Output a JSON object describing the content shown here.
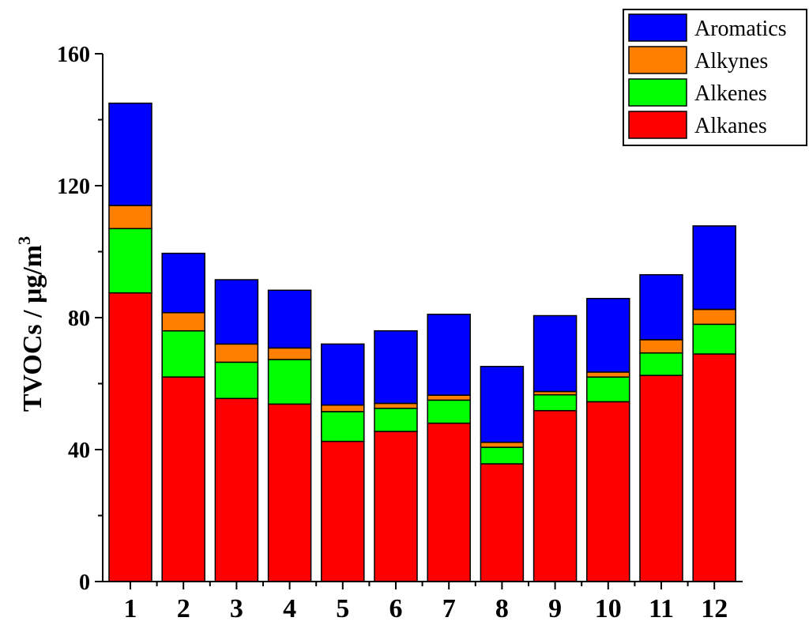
{
  "chart_data": {
    "type": "bar",
    "stacked": true,
    "categories": [
      "1",
      "2",
      "3",
      "4",
      "5",
      "6",
      "7",
      "8",
      "9",
      "10",
      "11",
      "12"
    ],
    "series": [
      {
        "name": "Alkanes",
        "color": "#ff0000",
        "values": [
          87.5,
          62,
          55.5,
          53.8,
          42.5,
          45.5,
          48,
          35.7,
          51.8,
          54.5,
          62.5,
          69
        ]
      },
      {
        "name": "Alkenes",
        "color": "#00ff00",
        "values": [
          19.5,
          14,
          11,
          13.5,
          9,
          7,
          7,
          5,
          4.8,
          7.5,
          6.8,
          9
        ]
      },
      {
        "name": "Alkynes",
        "color": "#ff8000",
        "values": [
          7,
          5.5,
          5.5,
          3.5,
          2,
          1.5,
          1.5,
          1.5,
          1,
          1.5,
          4,
          4.5
        ]
      },
      {
        "name": "Aromatics",
        "color": "#0000ff",
        "values": [
          31,
          18,
          19.5,
          17.5,
          18.5,
          22,
          24.5,
          23,
          23,
          22.3,
          19.7,
          25.3
        ]
      }
    ],
    "ylabel": "TVOCs / μg/m",
    "ylabel_superscript": "3",
    "yticks": [
      0,
      40,
      80,
      120,
      160
    ],
    "ylim": [
      0,
      160
    ],
    "legend_position": "top-right",
    "legend_order": [
      "Aromatics",
      "Alkynes",
      "Alkenes",
      "Alkanes"
    ],
    "grid": false
  }
}
